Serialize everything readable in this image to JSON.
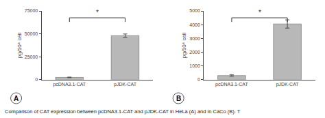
{
  "caption": "Comparison of CAT expression between pcDNA3.1-CAT and pJDK-CAT in HeLa (A) and in CaCo (B). T",
  "chart_data": [
    {
      "type": "bar",
      "title": "A",
      "categories": [
        "pcDNA3.1-CAT",
        "pJDK-CAT"
      ],
      "values": [
        2500,
        48000
      ],
      "errors": [
        300,
        1800
      ],
      "ylim": [
        0,
        75000
      ],
      "yticks": [
        0,
        25000,
        50000,
        75000
      ],
      "ylabel": "pg/10⁴ cell",
      "annotations": [
        "*"
      ],
      "color": "#b8b8b8",
      "grid": false
    },
    {
      "type": "bar",
      "title": "B",
      "categories": [
        "pcDNA3.1-CAT",
        "pJDK-CAT"
      ],
      "values": [
        300,
        4050
      ],
      "errors": [
        50,
        300
      ],
      "ylim": [
        0,
        5000
      ],
      "yticks": [
        0,
        1000,
        2000,
        3000,
        4000,
        5000
      ],
      "ylabel": "pg/10⁴ cell",
      "annotations": [
        "*"
      ],
      "color": "#b8b8b8",
      "grid": false
    }
  ]
}
